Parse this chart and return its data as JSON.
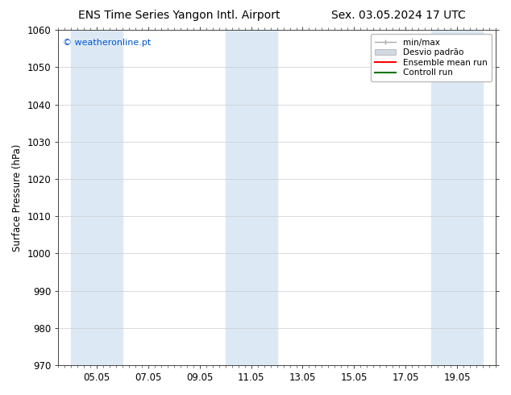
{
  "title_left": "ENS Time Series Yangon Intl. Airport",
  "title_right": "Sex. 03.05.2024 17 UTC",
  "ylabel": "Surface Pressure (hPa)",
  "ylim": [
    970,
    1060
  ],
  "yticks": [
    970,
    980,
    990,
    1000,
    1010,
    1020,
    1030,
    1040,
    1050,
    1060
  ],
  "xtick_labels": [
    "05.05",
    "07.05",
    "09.05",
    "11.05",
    "13.05",
    "15.05",
    "17.05",
    "19.05"
  ],
  "xtick_positions": [
    1,
    3,
    5,
    7,
    9,
    11,
    13,
    15
  ],
  "watermark": "© weatheronline.pt",
  "watermark_color": "#0055cc",
  "background_color": "#ffffff",
  "plot_bg_color": "#ffffff",
  "shaded_bands": [
    {
      "x_start": 0,
      "x_end": 2,
      "color": "#dce9f5"
    },
    {
      "x_start": 6,
      "x_end": 8,
      "color": "#dce9f5"
    },
    {
      "x_start": 14,
      "x_end": 16,
      "color": "#dce9f5"
    }
  ],
  "xlim": [
    -0.5,
    16.5
  ],
  "title_fontsize": 10,
  "tick_fontsize": 8.5,
  "ylabel_fontsize": 8.5,
  "grid_color": "#cccccc",
  "axis_color": "#444444"
}
